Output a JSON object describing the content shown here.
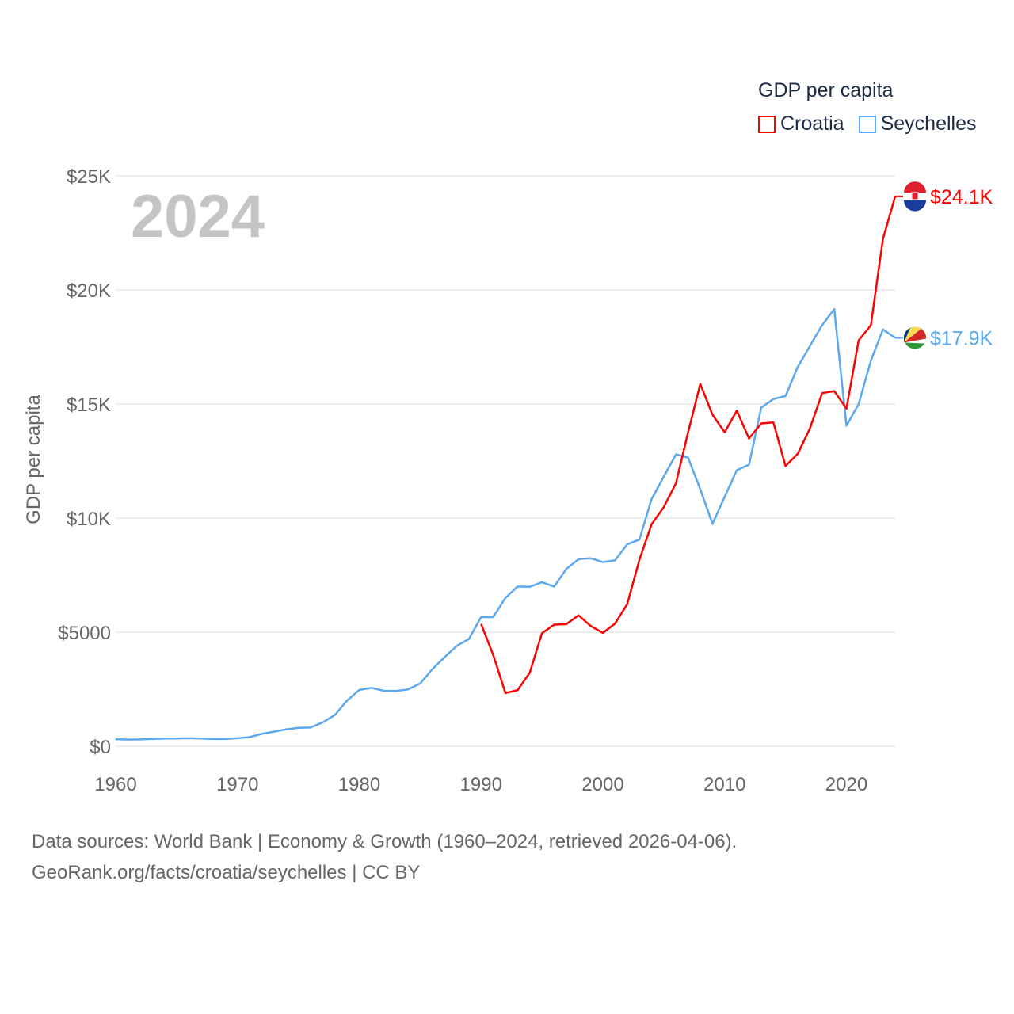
{
  "chart_data": {
    "type": "line",
    "title": "GDP per capita",
    "ylabel": "GDP per capita",
    "xlabel": "",
    "xlim": [
      1960,
      2024
    ],
    "ylim": [
      0,
      25000
    ],
    "x_ticks": [
      1960,
      1970,
      1980,
      1990,
      2000,
      2010,
      2020
    ],
    "x_tick_labels": [
      "1960",
      "1970",
      "1980",
      "1990",
      "2000",
      "2010",
      "2020"
    ],
    "y_ticks": [
      0,
      5000,
      10000,
      15000,
      20000,
      25000
    ],
    "y_tick_labels": [
      "$0",
      "$5000",
      "$10K",
      "$15K",
      "$20K",
      "$25K"
    ],
    "grid": true,
    "legend_title": "GDP per capita",
    "legend_position": "top-right",
    "year_label": "2024",
    "series": [
      {
        "name": "Croatia",
        "color": "#ff0000",
        "end_label": "$24.1K",
        "start_year": 1990,
        "values": [
          5360,
          4000,
          2330,
          2460,
          3230,
          4950,
          5330,
          5350,
          5740,
          5270,
          4970,
          5380,
          6230,
          8170,
          9730,
          10480,
          11530,
          13760,
          15880,
          14530,
          13760,
          14710,
          13490,
          14150,
          14190,
          12280,
          12820,
          13930,
          15480,
          15570,
          14800,
          17790,
          18450,
          22240,
          24100
        ]
      },
      {
        "name": "Seychelles",
        "color": "#5ba8f0",
        "end_label": "$17.9K",
        "start_year": 1960,
        "values": [
          310,
          290,
          300,
          320,
          340,
          340,
          350,
          340,
          320,
          320,
          350,
          400,
          540,
          640,
          740,
          810,
          820,
          1050,
          1370,
          2000,
          2470,
          2560,
          2430,
          2420,
          2490,
          2750,
          3380,
          3900,
          4400,
          4700,
          5660,
          5660,
          6500,
          7000,
          6990,
          7190,
          7000,
          7770,
          8200,
          8240,
          8070,
          8150,
          8850,
          9060,
          10830,
          11820,
          12790,
          12650,
          11260,
          9750,
          10930,
          12100,
          12340,
          14840,
          15220,
          15350,
          16620,
          17540,
          18460,
          19160,
          14050,
          15000,
          16900,
          18270,
          17900
        ]
      }
    ]
  },
  "footer": {
    "line1": "Data sources: World Bank | Economy & Growth (1960–2024, retrieved 2026-04-06).",
    "line2": "GeoRank.org/facts/croatia/seychelles | CC BY"
  }
}
